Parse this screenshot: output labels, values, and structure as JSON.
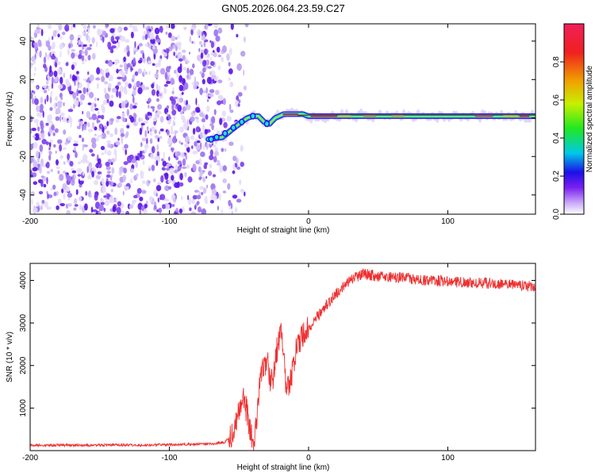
{
  "title": "GN05.2026.064.23.59.C27",
  "spectrogram": {
    "xlabel": "Height of straight line (km)",
    "ylabel": "Frequency (Hz)",
    "xlim": [
      -200,
      163
    ],
    "ylim": [
      -50,
      49
    ],
    "xticks": [
      -200,
      -100,
      0,
      100
    ],
    "yticks": [
      -40,
      -20,
      0,
      20,
      40
    ],
    "noise_region_x": [
      -200,
      -60
    ],
    "ridge": [
      [
        -72,
        -11
      ],
      [
        -62,
        -10
      ],
      [
        -55,
        -6
      ],
      [
        -48,
        -2
      ],
      [
        -44,
        0
      ],
      [
        -40,
        1
      ],
      [
        -36,
        1
      ],
      [
        -32,
        -2
      ],
      [
        -28,
        -3
      ],
      [
        -24,
        0
      ],
      [
        -18,
        2
      ],
      [
        -10,
        2
      ],
      [
        -4,
        2
      ],
      [
        0,
        1
      ],
      [
        20,
        1
      ],
      [
        60,
        1
      ],
      [
        100,
        1
      ],
      [
        163,
        1
      ]
    ]
  },
  "colorbar": {
    "label": "Normalized spectral amplitude",
    "ticks": [
      "0.0",
      "0.2",
      "0.4",
      "0.6",
      "0.8"
    ],
    "tick_values": [
      0.0,
      0.2,
      0.4,
      0.6,
      0.8
    ],
    "range": [
      0,
      1
    ],
    "colors": [
      "#ffffff",
      "#c8a8f8",
      "#7a20f0",
      "#1a10e8",
      "#00c8e8",
      "#20e820",
      "#c8f000",
      "#f0a000",
      "#f02020",
      "#f0205a"
    ]
  },
  "chart_data": {
    "type": "line",
    "title": "GN05.2026.064.23.59.C27",
    "xlabel": "Height of straight line (km)",
    "ylabel": "SNR (10 * v/v)",
    "xlim": [
      -200,
      163
    ],
    "ylim": [
      0,
      4400
    ],
    "xticks": [
      -200,
      -100,
      0,
      100
    ],
    "yticks": [
      1000,
      2000,
      3000,
      4000
    ],
    "series": [
      {
        "name": "SNR",
        "color": "#ee3030",
        "x": [
          -200,
          -180,
          -160,
          -140,
          -120,
          -100,
          -80,
          -70,
          -60,
          -55,
          -50,
          -47,
          -45,
          -43,
          -40,
          -38,
          -36,
          -34,
          -32,
          -30,
          -28,
          -26,
          -24,
          -22,
          -20,
          -18,
          -16,
          -14,
          -12,
          -10,
          -8,
          -6,
          -4,
          -2,
          0,
          5,
          10,
          15,
          20,
          25,
          30,
          35,
          40,
          50,
          60,
          70,
          80,
          90,
          100,
          110,
          120,
          130,
          140,
          150,
          163
        ],
        "values": [
          120,
          130,
          125,
          135,
          130,
          140,
          150,
          160,
          200,
          400,
          900,
          1300,
          1000,
          700,
          250,
          500,
          1200,
          1800,
          1900,
          2200,
          1700,
          1600,
          2100,
          2500,
          2800,
          2200,
          1500,
          1400,
          1800,
          2200,
          2500,
          2600,
          2700,
          2800,
          2900,
          3100,
          3300,
          3500,
          3700,
          3850,
          4000,
          4100,
          4150,
          4100,
          4080,
          4050,
          4000,
          4000,
          3980,
          3950,
          3950,
          3930,
          3900,
          3880,
          3850
        ]
      }
    ]
  }
}
